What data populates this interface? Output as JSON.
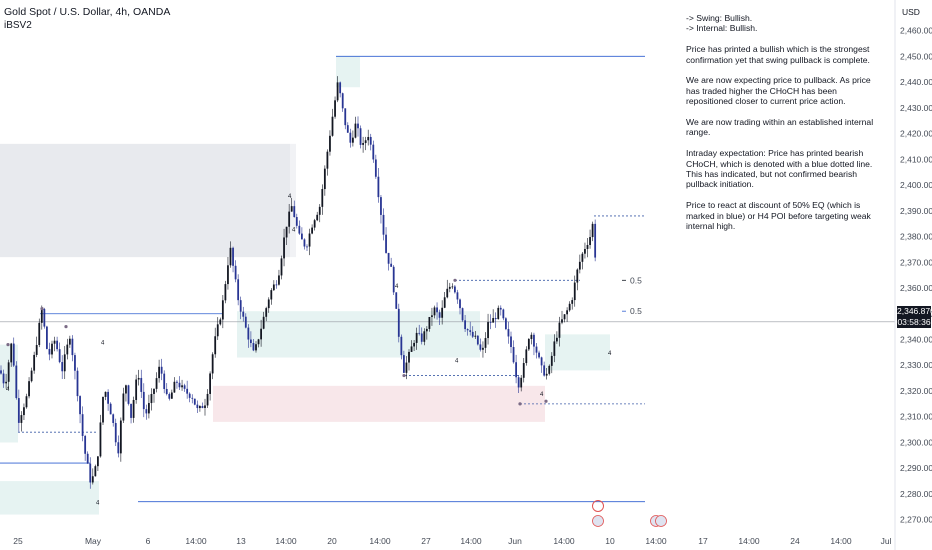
{
  "header": {
    "symbol_line": "Gold Spot / U.S. Dollar, 4h, OANDA",
    "indicator": "iBSV2"
  },
  "currency": "USD",
  "notes": [
    "-> Swing:  Bullish.\n-> Internal:  Bullish.",
    "Price has printed a bullish which is the strongest confirmation yet that swing pullback is complete.",
    "We are now expecting price to pullback.  As price has traded higher the CHoCH has been repositioned closer to current price action.",
    "We are now trading within an established internal range.",
    "Intraday expectation:  Price has printed bearish CHoCH, which is denoted with a blue dotted line.  This has indicated, but not confirmed bearish pullback initiation.",
    "Price to react at discount of 50% EQ (which is marked in blue) or H4 POI before targeting weak internal high."
  ],
  "last_price": {
    "price": "2,346.870",
    "countdown": "03:58:36"
  },
  "colors": {
    "bull": "#131722",
    "bear": "#283593",
    "demand_zone": "#e3f2f1",
    "supply_zone": "#e6e8ec",
    "poi_zone": "#f7e4e8",
    "structure_line": "#2f5fd0"
  },
  "chart_data": {
    "type": "candlestick",
    "title": "Gold Spot / U.S. Dollar, 4h, OANDA",
    "timeframe": "4h",
    "x_ticks": [
      "25",
      "May",
      "6",
      "14:00",
      "13",
      "14:00",
      "20",
      "14:00",
      "27",
      "14:00",
      "Jun",
      "14:00",
      "10",
      "14:00",
      "17",
      "14:00",
      "24",
      "14:00",
      "Jul"
    ],
    "y_ticks": [
      2270,
      2280,
      2290,
      2300,
      2310,
      2320,
      2330,
      2340,
      2350,
      2360,
      2370,
      2380,
      2390,
      2400,
      2410,
      2420,
      2430,
      2440,
      2450,
      2460
    ],
    "y_tick_labels": [
      "2,270.000",
      "2,280.000",
      "2,290.000",
      "2,300.000",
      "2,310.000",
      "2,320.000",
      "2,330.000",
      "2,340.000",
      "2,350.000",
      "2,360.000",
      "2,370.000",
      "2,380.000",
      "2,390.000",
      "2,400.000",
      "2,410.000",
      "2,420.000",
      "2,430.000",
      "2,440.000",
      "2,450.000",
      "2,460.000"
    ],
    "ylim": [
      2266,
      2468
    ],
    "path_points": [
      [
        0,
        2328
      ],
      [
        5,
        2322
      ],
      [
        12,
        2340
      ],
      [
        18,
        2308
      ],
      [
        27,
        2318
      ],
      [
        35,
        2335
      ],
      [
        42,
        2352
      ],
      [
        48,
        2333
      ],
      [
        55,
        2340
      ],
      [
        62,
        2328
      ],
      [
        70,
        2342
      ],
      [
        78,
        2318
      ],
      [
        84,
        2298
      ],
      [
        91,
        2284
      ],
      [
        97,
        2292
      ],
      [
        104,
        2322
      ],
      [
        112,
        2310
      ],
      [
        118,
        2296
      ],
      [
        125,
        2325
      ],
      [
        131,
        2310
      ],
      [
        138,
        2328
      ],
      [
        145,
        2310
      ],
      [
        152,
        2318
      ],
      [
        160,
        2330
      ],
      [
        168,
        2315
      ],
      [
        176,
        2324
      ],
      [
        184,
        2320
      ],
      [
        192,
        2318
      ],
      [
        198,
        2312
      ],
      [
        206,
        2316
      ],
      [
        214,
        2338
      ],
      [
        222,
        2352
      ],
      [
        230,
        2376
      ],
      [
        238,
        2356
      ],
      [
        246,
        2344
      ],
      [
        254,
        2334
      ],
      [
        262,
        2346
      ],
      [
        270,
        2358
      ],
      [
        278,
        2364
      ],
      [
        286,
        2384
      ],
      [
        292,
        2392
      ],
      [
        299,
        2380
      ],
      [
        306,
        2376
      ],
      [
        313,
        2386
      ],
      [
        320,
        2392
      ],
      [
        327,
        2412
      ],
      [
        333,
        2428
      ],
      [
        338,
        2440
      ],
      [
        344,
        2426
      ],
      [
        350,
        2416
      ],
      [
        356,
        2424
      ],
      [
        362,
        2414
      ],
      [
        368,
        2420
      ],
      [
        374,
        2410
      ],
      [
        380,
        2392
      ],
      [
        386,
        2374
      ],
      [
        392,
        2366
      ],
      [
        398,
        2344
      ],
      [
        404,
        2328
      ],
      [
        410,
        2335
      ],
      [
        416,
        2342
      ],
      [
        422,
        2340
      ],
      [
        428,
        2346
      ],
      [
        434,
        2352
      ],
      [
        440,
        2348
      ],
      [
        446,
        2358
      ],
      [
        452,
        2362
      ],
      [
        458,
        2356
      ],
      [
        464,
        2346
      ],
      [
        470,
        2342
      ],
      [
        476,
        2340
      ],
      [
        482,
        2334
      ],
      [
        488,
        2346
      ],
      [
        494,
        2348
      ],
      [
        500,
        2352
      ],
      [
        506,
        2343
      ],
      [
        512,
        2336
      ],
      [
        518,
        2322
      ],
      [
        524,
        2330
      ],
      [
        530,
        2344
      ],
      [
        536,
        2336
      ],
      [
        542,
        2328
      ],
      [
        548,
        2326
      ],
      [
        554,
        2338
      ],
      [
        560,
        2346
      ],
      [
        566,
        2350
      ],
      [
        572,
        2356
      ],
      [
        578,
        2368
      ],
      [
        584,
        2375
      ],
      [
        590,
        2380
      ],
      [
        594,
        2387
      ],
      [
        597,
        2350
      ]
    ],
    "zones": [
      {
        "kind": "supply",
        "x": [
          0,
          290
        ],
        "y": [
          2372,
          2416
        ]
      },
      {
        "kind": "supply",
        "x": [
          290,
          296
        ],
        "y": [
          2372,
          2416
        ]
      },
      {
        "kind": "demand",
        "x": [
          0,
          18
        ],
        "y": [
          2300,
          2338
        ]
      },
      {
        "kind": "demand",
        "x": [
          0,
          99
        ],
        "y": [
          2285,
          2272
        ]
      },
      {
        "kind": "demand",
        "x": [
          237,
          480
        ],
        "y": [
          2333,
          2351
        ]
      },
      {
        "kind": "demand",
        "x": [
          336,
          360
        ],
        "y": [
          2438,
          2450
        ]
      },
      {
        "kind": "demand",
        "x": [
          545,
          610
        ],
        "y": [
          2328,
          2342
        ]
      },
      {
        "kind": "poi",
        "x": [
          213,
          545
        ],
        "y": [
          2308,
          2322
        ]
      }
    ],
    "structure_lines": [
      {
        "x": [
          336,
          645
        ],
        "y": 2450,
        "style": "solid"
      },
      {
        "x": [
          40,
          222
        ],
        "y": 2350,
        "style": "solid"
      },
      {
        "x": [
          0,
          90
        ],
        "y": 2292,
        "style": "solid"
      },
      {
        "x": [
          138,
          645
        ],
        "y": 2277,
        "style": "solid"
      },
      {
        "x": [
          18,
          98
        ],
        "y": 2304,
        "style": "dotted"
      },
      {
        "x": [
          405,
          520
        ],
        "y": 2326,
        "style": "dotted"
      },
      {
        "x": [
          455,
          580
        ],
        "y": 2363,
        "style": "dotted"
      },
      {
        "x": [
          520,
          645
        ],
        "y": 2315,
        "style": "dotted"
      },
      {
        "x": [
          594,
          645
        ],
        "y": 2388,
        "style": "dotted"
      }
    ],
    "eq_labels": [
      {
        "text": "0.5",
        "y": 2363
      },
      {
        "text": "0.5",
        "y": 2351
      }
    ],
    "last_price_value": 2346.87
  }
}
